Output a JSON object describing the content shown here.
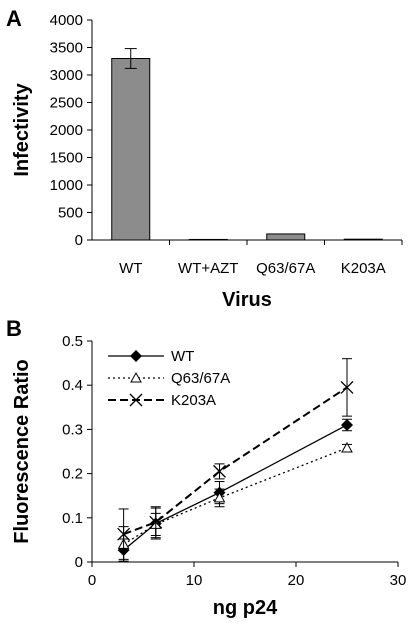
{
  "chart_data": [
    {
      "panel": "A",
      "type": "bar",
      "categories": [
        "WT",
        "WT+AZT",
        "Q63/67A",
        "K203A"
      ],
      "values": [
        3300,
        10,
        110,
        15
      ],
      "errors": [
        180,
        0,
        0,
        0
      ],
      "xlabel": "Virus",
      "ylabel": "Infectivity",
      "ylim": [
        0,
        4000
      ],
      "yticks": [
        0,
        500,
        1000,
        1500,
        2000,
        2500,
        3000,
        3500,
        4000
      ],
      "bar_color": "#8c8c8c"
    },
    {
      "panel": "B",
      "type": "line",
      "xlabel": "ng p24",
      "ylabel": "Fluorescence Ratio",
      "xlim": [
        0,
        30
      ],
      "ylim": [
        0,
        0.5
      ],
      "xticks": [
        0,
        10,
        20,
        30
      ],
      "yticks": [
        "0",
        "0.1",
        "0.2",
        "0.3",
        "0.4",
        "0.5"
      ],
      "legend_position": "top-left",
      "series": [
        {
          "name": "WT",
          "marker": "diamond",
          "dash": "solid",
          "x": [
            3.1,
            6.25,
            12.5,
            25
          ],
          "y": [
            0.027,
            0.087,
            0.157,
            0.31
          ],
          "err": [
            0.025,
            0.035,
            0.025,
            0.013
          ]
        },
        {
          "name": "Q63/67A",
          "marker": "triangle",
          "dash": "dotted",
          "x": [
            3.1,
            6.25,
            12.5,
            25
          ],
          "y": [
            0.04,
            0.085,
            0.145,
            0.258
          ],
          "err": [
            0.04,
            0.025,
            0.02,
            0.008
          ]
        },
        {
          "name": "K203A",
          "marker": "cross",
          "dash": "dashed",
          "x": [
            3.1,
            6.25,
            12.5,
            25
          ],
          "y": [
            0.063,
            0.09,
            0.205,
            0.395
          ],
          "err": [
            0.057,
            0.035,
            0.017,
            0.065
          ]
        }
      ]
    }
  ]
}
